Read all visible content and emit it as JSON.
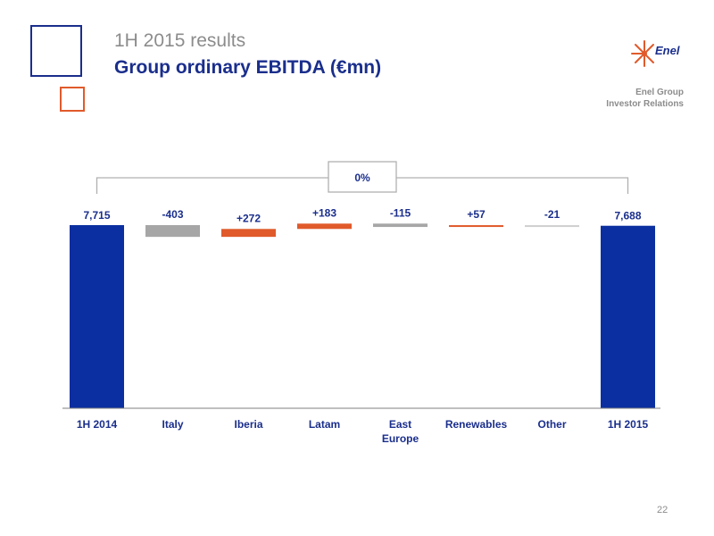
{
  "header": {
    "subtitle": "1H 2015 results",
    "title": "Group ordinary EBITDA (€mn)",
    "logo_text": "Enel",
    "org_line1": "Enel Group",
    "org_line2": "Investor Relations"
  },
  "page_number": "22",
  "colors": {
    "navy": "#0b2fa0",
    "orange": "#e05a2b",
    "gray": "#a6a6a6",
    "light_gray": "#cfcfcf",
    "text": "#1a2e8c"
  },
  "chart_data": {
    "type": "bar",
    "subtype": "waterfall",
    "categories": [
      "1H 2014",
      "Italy",
      "Iberia",
      "Latam",
      "East Europe",
      "Renewables",
      "Other",
      "1H 2015"
    ],
    "values": [
      7715,
      -403,
      272,
      183,
      -115,
      57,
      -21,
      7688
    ],
    "labels": [
      "7,715",
      "-403",
      "+272",
      "+183",
      "-115",
      "+57",
      "-21",
      "7,688"
    ],
    "bar_kinds": [
      "total",
      "delta",
      "delta",
      "delta",
      "delta",
      "delta",
      "delta",
      "total"
    ],
    "bar_colors": [
      "navy",
      "gray",
      "orange",
      "orange",
      "gray",
      "orange",
      "light_gray",
      "navy"
    ],
    "annotation": "0%",
    "grid": false
  }
}
